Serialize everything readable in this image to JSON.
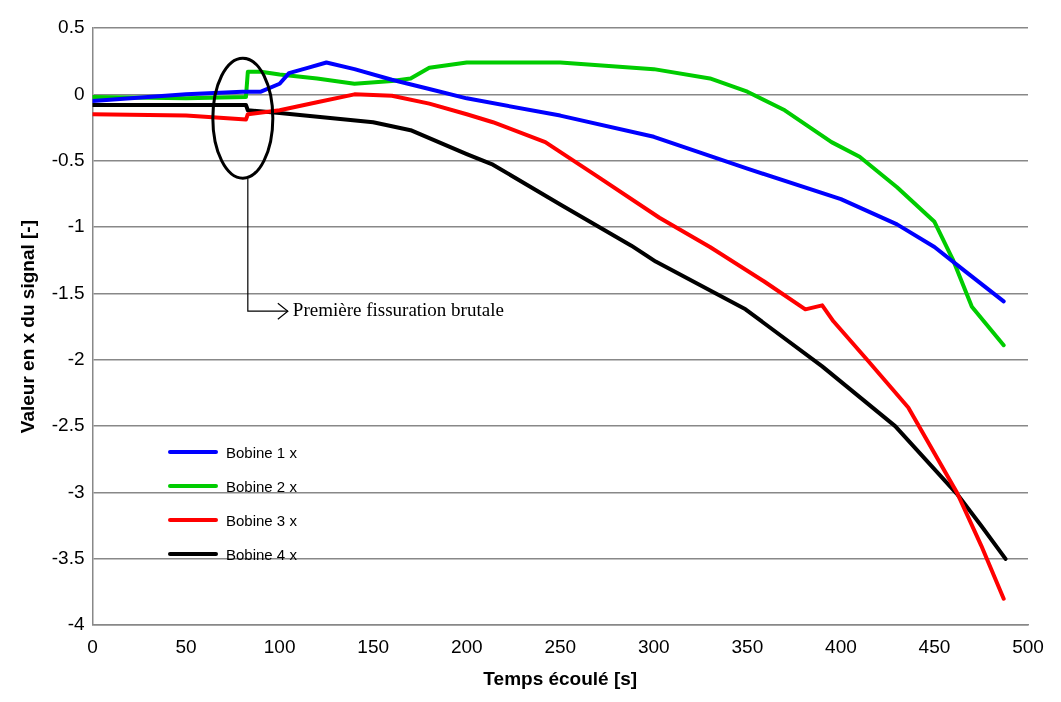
{
  "chart_data": {
    "type": "line",
    "xlabel": "Temps écoulé [s]",
    "ylabel": "Valeur en x du signal [-]",
    "xlim": [
      0,
      500
    ],
    "xticks": [
      0,
      50,
      100,
      150,
      200,
      250,
      300,
      350,
      400,
      450,
      500
    ],
    "ylim": [
      -4,
      0.5
    ],
    "yticks": [
      -4,
      -3.5,
      -3,
      -2.5,
      -2,
      -1.5,
      -1,
      -0.5,
      0,
      0.5
    ],
    "grid": "y",
    "legend": "bottom left",
    "marker": "none",
    "line_style": "solid",
    "annotations": [
      "Première fissuration brutale"
    ],
    "series": [
      {
        "name": "Bobine 1 x",
        "color": "#0000ff",
        "x": [
          0,
          50,
          80,
          90,
          100,
          105,
          115,
          125,
          140,
          160,
          180,
          200,
          250,
          300,
          350,
          400,
          430,
          450,
          467,
          487
        ],
        "values": [
          -0.05,
          0.0,
          0.02,
          0.02,
          0.08,
          0.16,
          0.2,
          0.24,
          0.19,
          0.11,
          0.04,
          -0.03,
          -0.16,
          -0.32,
          -0.56,
          -0.79,
          -0.98,
          -1.15,
          -1.34,
          -1.56
        ]
      },
      {
        "name": "Bobine 2 x",
        "color": "#00cc00",
        "x": [
          0,
          50,
          82,
          83,
          90,
          100,
          120,
          140,
          160,
          170,
          180,
          200,
          250,
          300,
          330,
          350,
          370,
          395,
          410,
          430,
          450,
          460,
          470,
          487
        ],
        "values": [
          -0.02,
          -0.03,
          -0.02,
          0.17,
          0.17,
          0.15,
          0.12,
          0.08,
          0.1,
          0.12,
          0.2,
          0.24,
          0.24,
          0.19,
          0.12,
          0.02,
          -0.12,
          -0.36,
          -0.47,
          -0.7,
          -0.96,
          -1.25,
          -1.6,
          -1.89
        ]
      },
      {
        "name": "Bobine 3 x",
        "color": "#ff0000",
        "x": [
          0,
          50,
          82,
          83,
          100,
          120,
          140,
          160,
          180,
          200,
          214,
          242,
          270,
          303,
          330,
          359,
          381,
          390,
          396,
          414,
          436,
          462,
          475,
          487
        ],
        "values": [
          -0.15,
          -0.16,
          -0.19,
          -0.15,
          -0.12,
          -0.06,
          0.0,
          -0.01,
          -0.07,
          -0.15,
          -0.21,
          -0.36,
          -0.62,
          -0.93,
          -1.15,
          -1.41,
          -1.62,
          -1.59,
          -1.71,
          -2.0,
          -2.36,
          -3.0,
          -3.4,
          -3.8
        ]
      },
      {
        "name": "Bobine 4 x",
        "color": "#000000",
        "x": [
          0,
          50,
          82,
          83,
          100,
          150,
          170,
          200,
          214,
          250,
          288,
          301,
          349,
          390,
          429,
          462,
          475,
          488
        ],
        "values": [
          -0.08,
          -0.08,
          -0.08,
          -0.12,
          -0.14,
          -0.21,
          -0.27,
          -0.45,
          -0.53,
          -0.83,
          -1.14,
          -1.26,
          -1.62,
          -2.05,
          -2.5,
          -3.01,
          -3.25,
          -3.5
        ]
      }
    ]
  }
}
